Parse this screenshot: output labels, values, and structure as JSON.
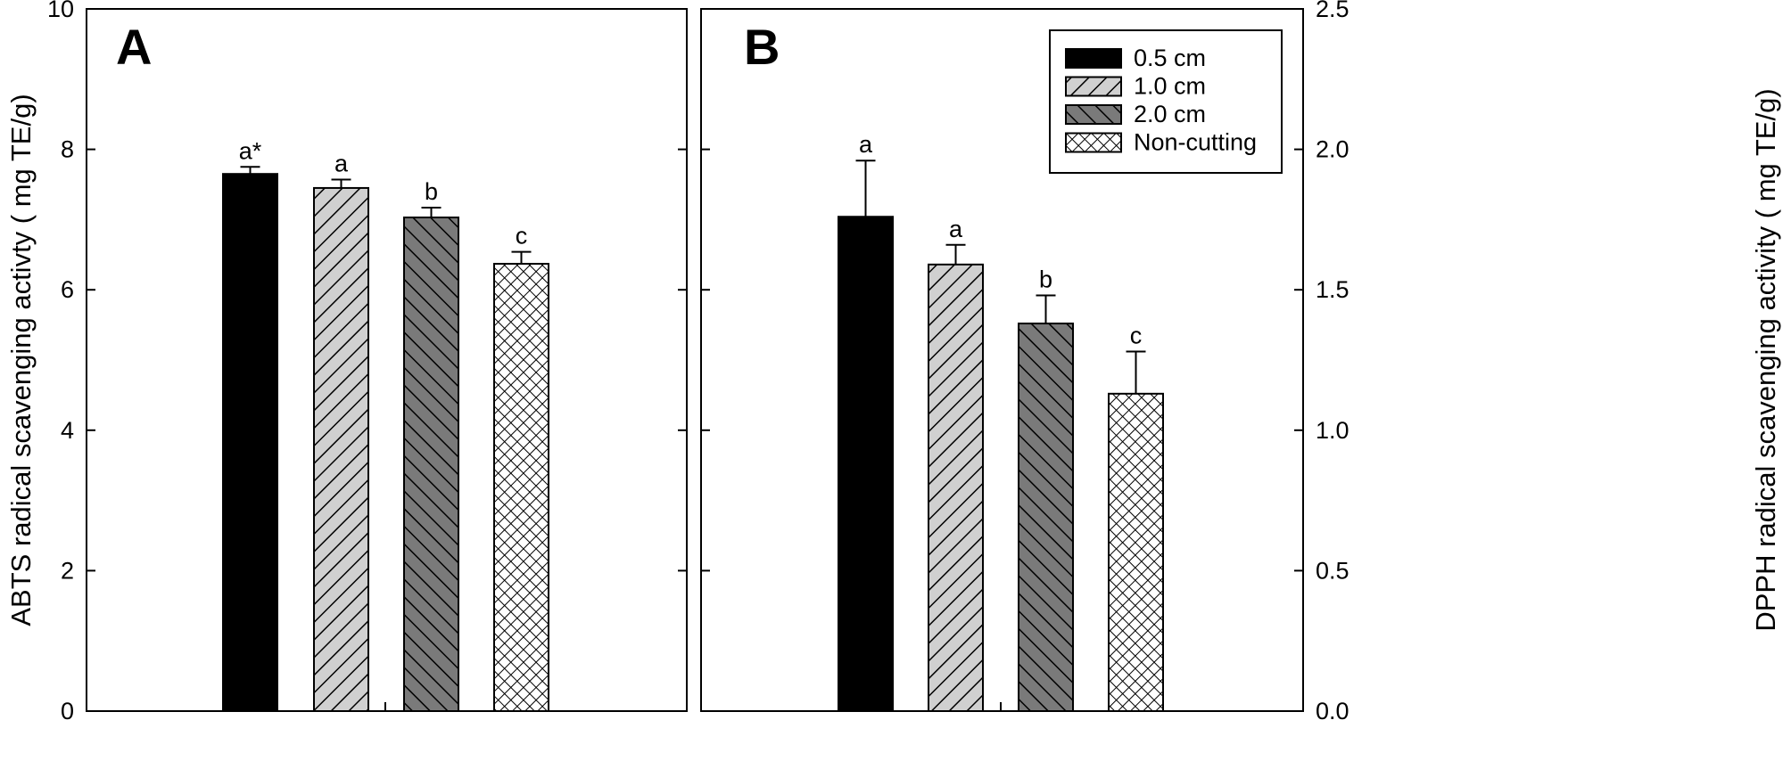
{
  "chart_data": [
    {
      "type": "bar",
      "panel": "A",
      "title": "A",
      "xlabel": "",
      "ylabel": "ABTS radical scavenging activty ( mg TE/g)",
      "ylim": [
        0,
        10
      ],
      "yticks": [
        "0",
        "2",
        "4",
        "6",
        "8",
        "10"
      ],
      "y_axis_side": "left",
      "categories": [
        "0.5 cm",
        "1.0 cm",
        "2.0 cm",
        "Non-cutting"
      ],
      "values": [
        7.65,
        7.45,
        7.03,
        6.37
      ],
      "errors": [
        0.1,
        0.12,
        0.14,
        0.17
      ],
      "significance": [
        "a*",
        "a",
        "b",
        "c"
      ],
      "grid": false
    },
    {
      "type": "bar",
      "panel": "B",
      "title": "B",
      "xlabel": "",
      "ylabel": "DPPH radical scavenging activity ( mg TE/g)",
      "ylim": [
        0,
        2.5
      ],
      "yticks": [
        "0.0",
        "0.5",
        "1.0",
        "1.5",
        "2.0",
        "2.5"
      ],
      "y_axis_side": "right",
      "categories": [
        "0.5 cm",
        "1.0 cm",
        "2.0 cm",
        "Non-cutting"
      ],
      "values": [
        1.76,
        1.59,
        1.38,
        1.13
      ],
      "errors": [
        0.2,
        0.07,
        0.1,
        0.15
      ],
      "significance": [
        "a",
        "a",
        "b",
        "c"
      ],
      "grid": false
    }
  ],
  "legend": {
    "position": "top-right",
    "entries": [
      {
        "label": "0.5 cm",
        "pattern": "solid"
      },
      {
        "label": "1.0 cm",
        "pattern": "diag-light"
      },
      {
        "label": "2.0 cm",
        "pattern": "diag-dark"
      },
      {
        "label": "Non-cutting",
        "pattern": "crosshatch"
      }
    ]
  },
  "colors": {
    "solid": "#000000",
    "diag_light_bg": "#d0d0d0",
    "diag_dark_bg": "#7a7a7a",
    "crosshatch_bg": "#ffffff",
    "stroke": "#000000"
  }
}
